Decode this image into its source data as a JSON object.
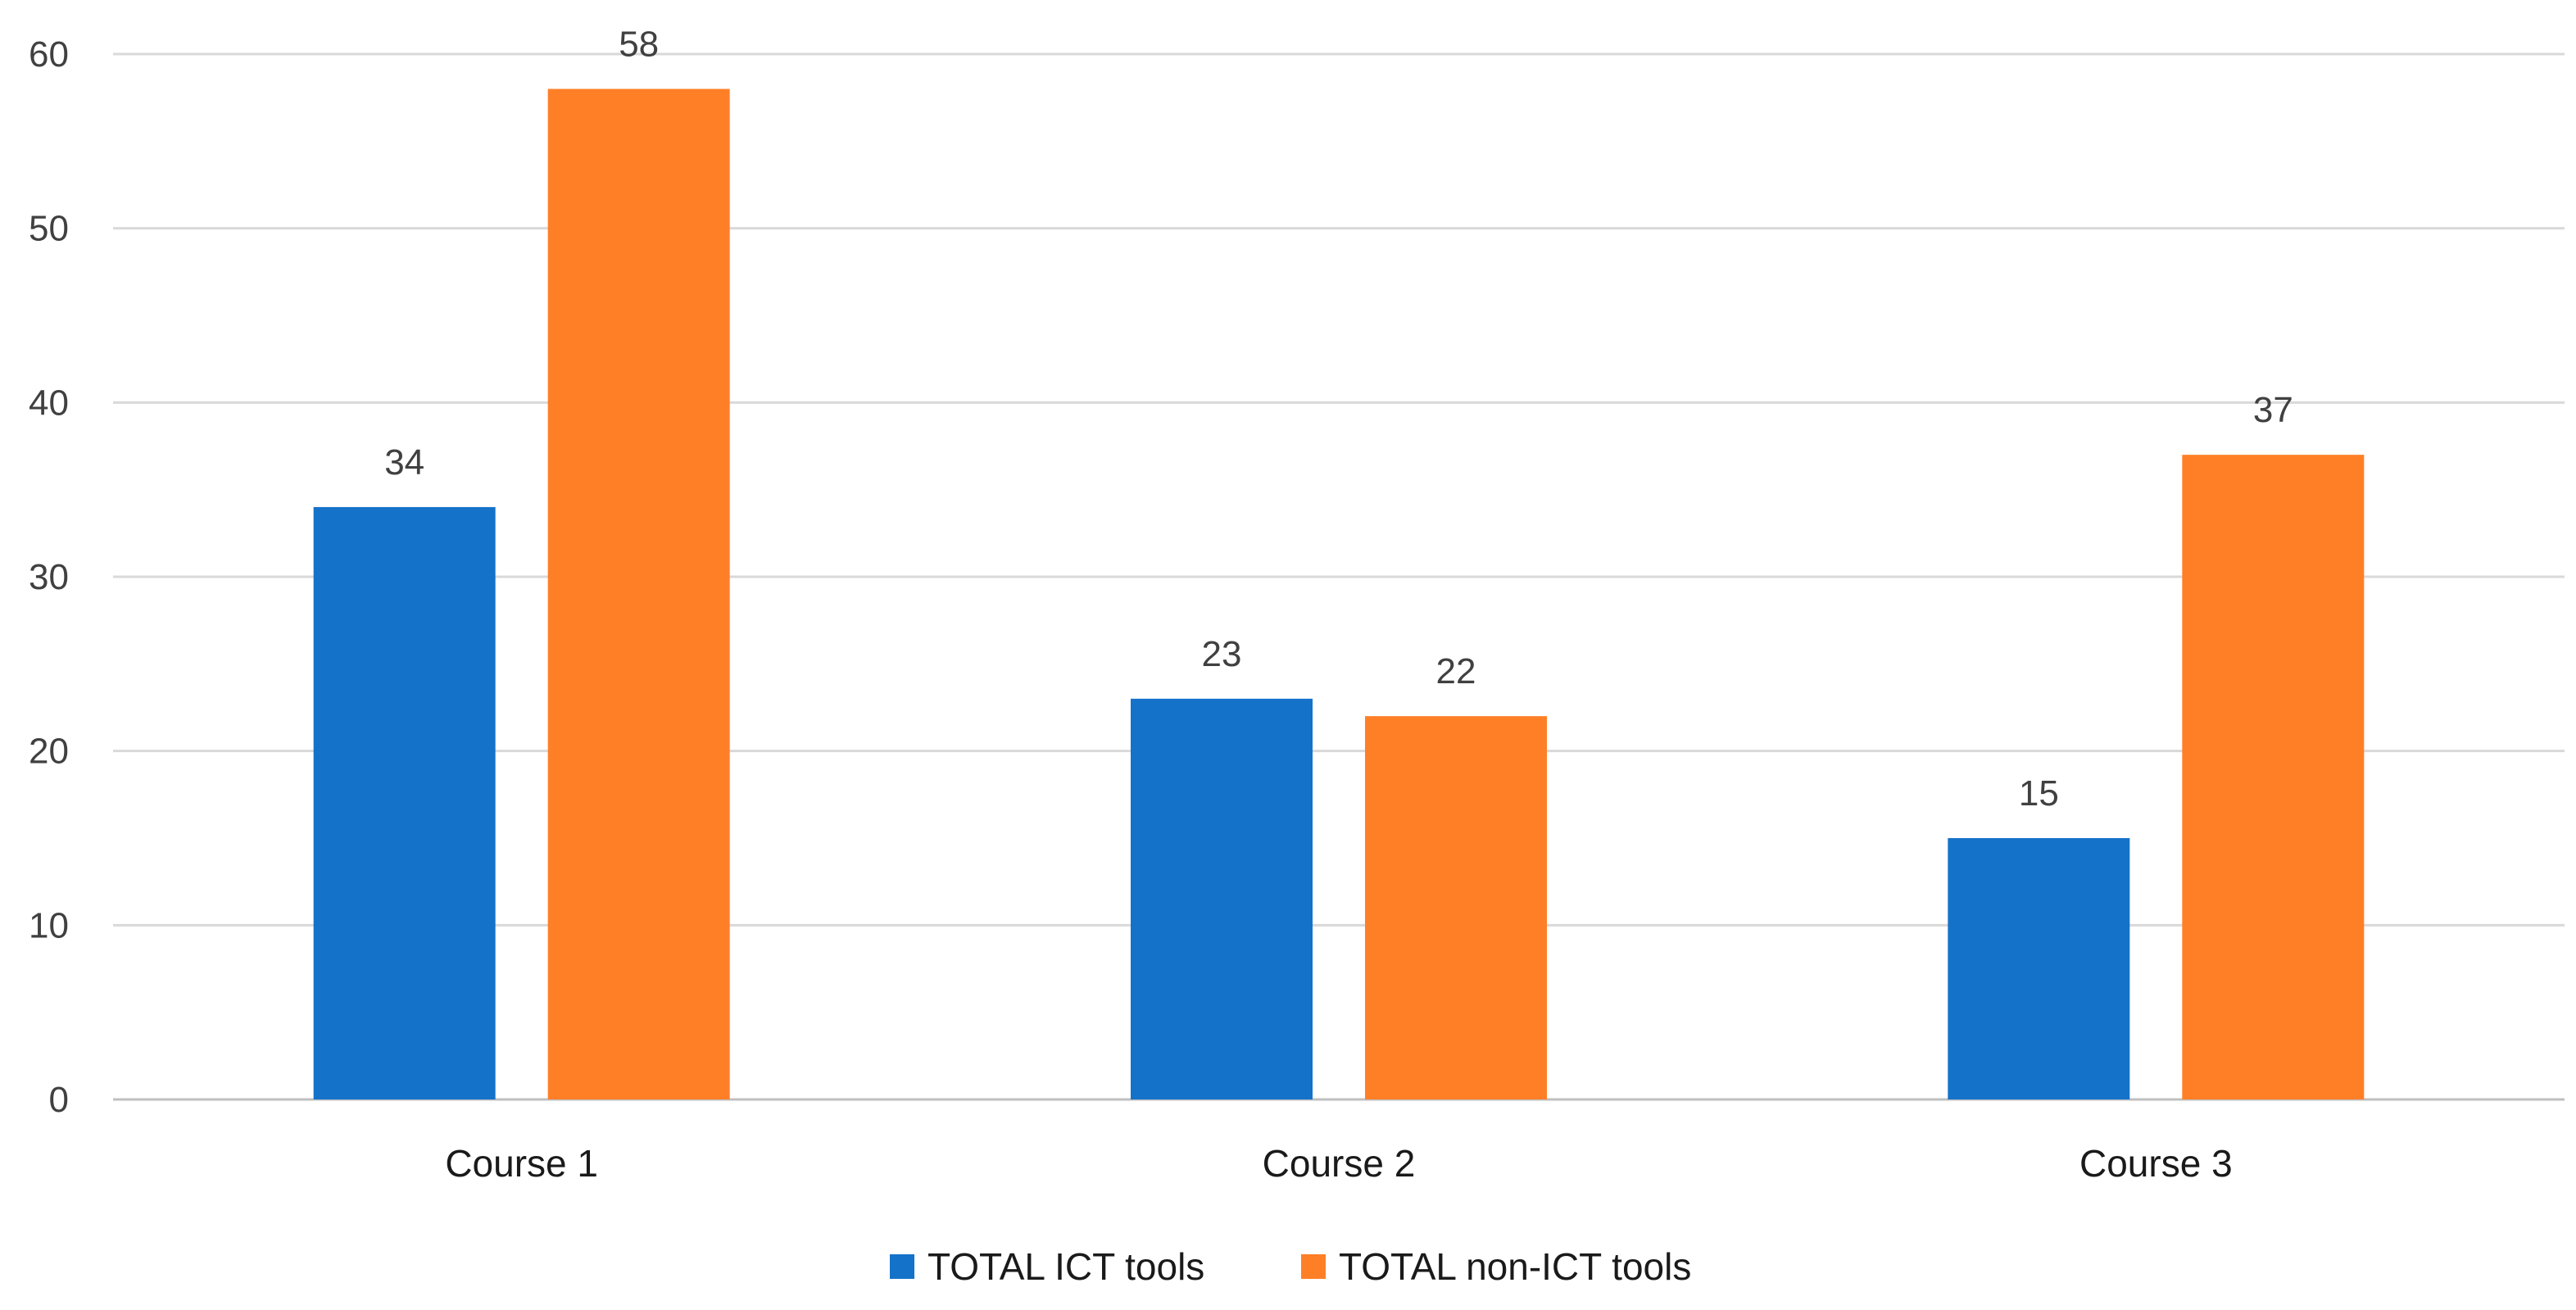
{
  "chart_data": {
    "type": "bar",
    "title": "",
    "xlabel": "",
    "ylabel": "",
    "categories": [
      "Course 1",
      "Course 2",
      "Course 3"
    ],
    "series": [
      {
        "name": "TOTAL ICT tools",
        "values": [
          34,
          23,
          15
        ],
        "color": "#1572C9"
      },
      {
        "name": "TOTAL non-ICT tools",
        "values": [
          58,
          22,
          37
        ],
        "color": "#FF7F27"
      }
    ],
    "ylim": [
      0,
      60
    ],
    "yticks": [
      0,
      10,
      20,
      30,
      40,
      50,
      60
    ],
    "grid": true,
    "legend_position": "bottom",
    "data_labels": true
  }
}
